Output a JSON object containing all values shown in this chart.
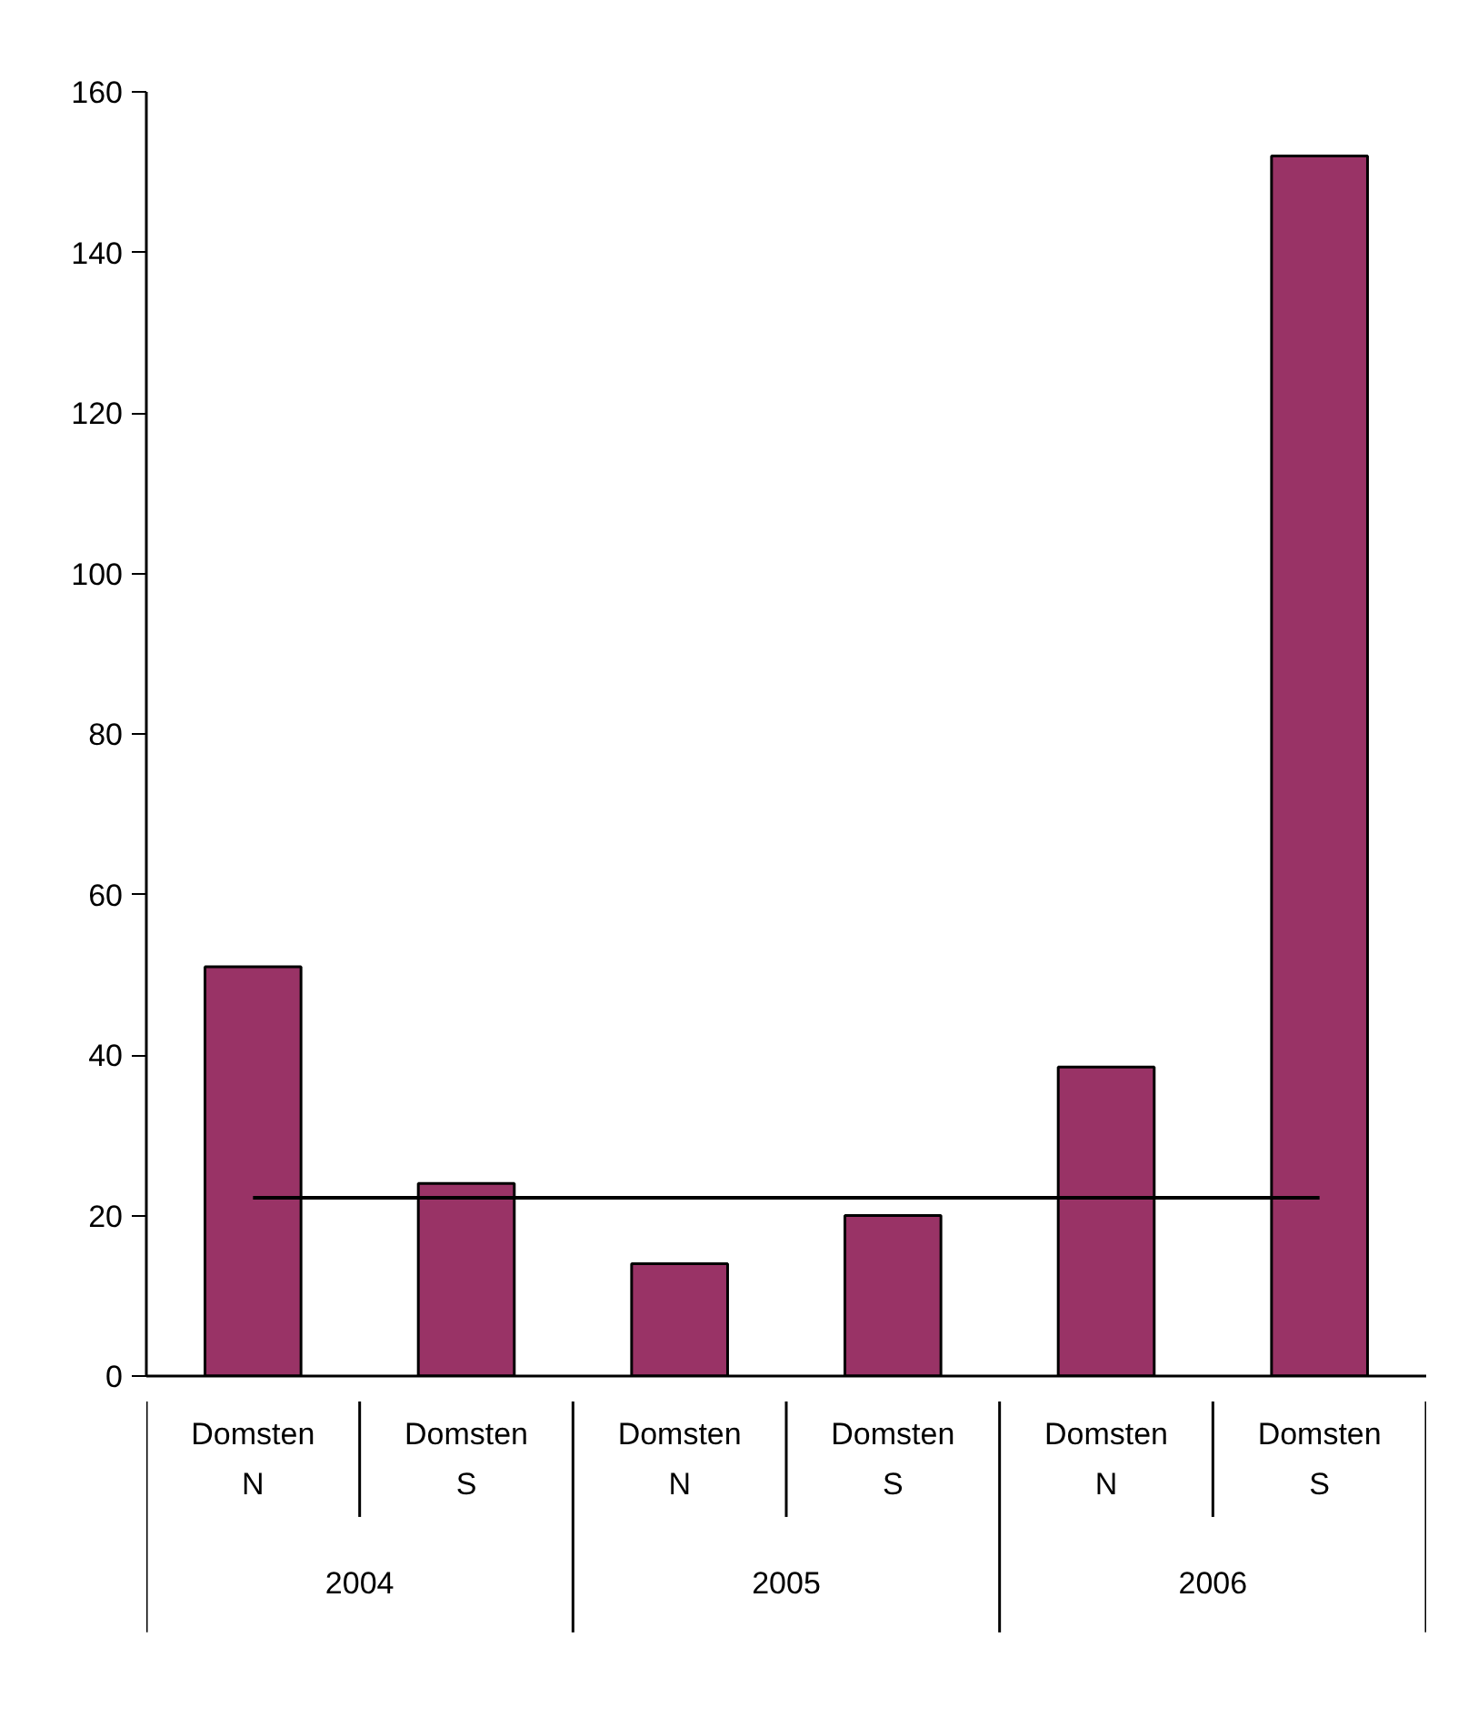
{
  "chart_data": {
    "type": "bar",
    "categories": [
      "Domsten\nN",
      "Domsten\nS",
      "Domsten\nN",
      "Domsten\nS",
      "Domsten\nN",
      "Domsten\nS"
    ],
    "values": [
      51,
      24,
      14,
      20,
      38.5,
      152
    ],
    "color": "#993366",
    "annotations": [
      "2004",
      "2005",
      "2006"
    ],
    "ref_lines": [
      {
        "axis": "y",
        "value": 22.2,
        "color": "#000000"
      }
    ],
    "ylim": [
      0,
      160
    ],
    "yticks": [
      0,
      20,
      40,
      60,
      80,
      100,
      120,
      140,
      160
    ],
    "grid": false
  }
}
